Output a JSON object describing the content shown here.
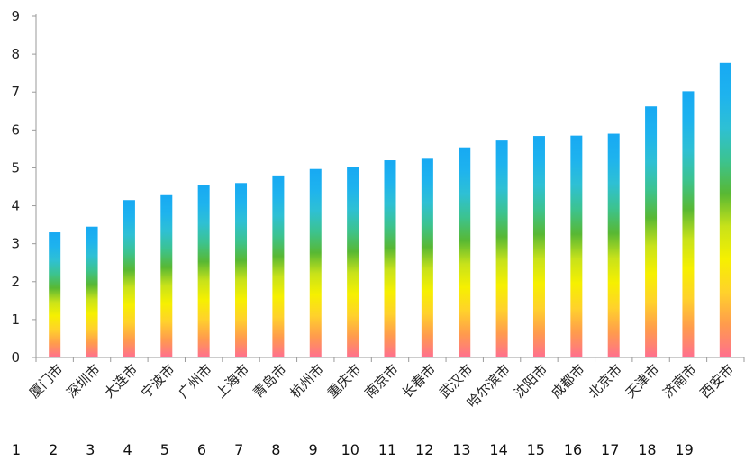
{
  "chart_data": {
    "type": "bar",
    "categories": [
      "厦门市",
      "深圳市",
      "大连市",
      "宁波市",
      "广州市",
      "上海市",
      "青岛市",
      "杭州市",
      "重庆市",
      "南京市",
      "长春市",
      "武汉市",
      "哈尔滨市",
      "沈阳市",
      "成都市",
      "北京市",
      "天津市",
      "济南市",
      "西安市"
    ],
    "values": [
      3.3,
      3.45,
      4.15,
      4.28,
      4.55,
      4.6,
      4.8,
      4.97,
      5.02,
      5.2,
      5.24,
      5.54,
      5.72,
      5.84,
      5.85,
      5.9,
      6.62,
      7.02,
      7.77
    ],
    "ylim": [
      0,
      9
    ],
    "yticks": [
      "0",
      "1",
      "2",
      "3",
      "4",
      "5",
      "6",
      "7",
      "8",
      "9"
    ],
    "row_numbers": [
      "1",
      "2",
      "3",
      "4",
      "5",
      "6",
      "7",
      "8",
      "9",
      "10",
      "11",
      "12",
      "13",
      "14",
      "15",
      "16",
      "17",
      "18",
      "19"
    ],
    "title": "",
    "xlabel": "",
    "ylabel": "",
    "grid": false,
    "bar_gradient": [
      "#ff6f8f",
      "#ff9b4d",
      "#ffd22b",
      "#f6f000",
      "#c8e21a",
      "#58b833",
      "#3cc38f",
      "#2ec0d4",
      "#1eb3ee",
      "#17a9f3"
    ]
  }
}
